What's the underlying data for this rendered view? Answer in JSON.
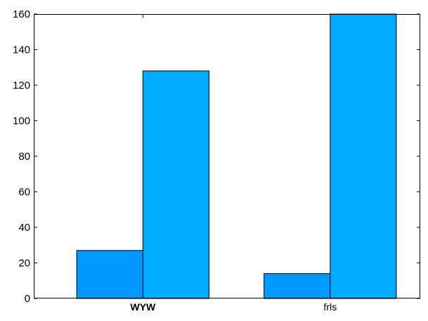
{
  "chart_data": {
    "type": "bar",
    "categories": [
      "WYW",
      "frls"
    ],
    "category_bold": [
      true,
      false
    ],
    "series": [
      {
        "values": [
          27,
          14
        ],
        "color": "#0099ff"
      },
      {
        "values": [
          128,
          160
        ],
        "color": "#00aaff"
      }
    ],
    "ylim": [
      0,
      160
    ],
    "yticks": [
      0,
      20,
      40,
      60,
      80,
      100,
      120,
      140,
      160
    ],
    "grid": false,
    "title": "",
    "xlabel": "",
    "ylabel": ""
  }
}
